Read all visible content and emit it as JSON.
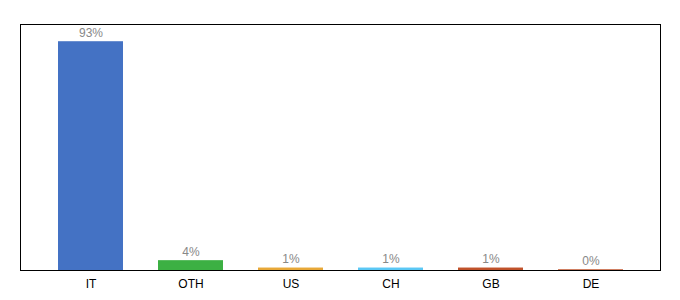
{
  "chart_data": {
    "type": "bar",
    "categories": [
      "IT",
      "OTH",
      "US",
      "CH",
      "GB",
      "DE"
    ],
    "values": [
      93,
      4,
      1,
      1,
      1,
      0.3
    ],
    "value_labels": [
      "93%",
      "4%",
      "1%",
      "1%",
      "1%",
      "0%"
    ],
    "colors": [
      "#4472c4",
      "#3cb043",
      "#e8a838",
      "#5bc8f5",
      "#c0522b",
      "#c0522b"
    ],
    "ylim": [
      0,
      100
    ],
    "yticks": [],
    "tick_labels": "x",
    "data_labels": true
  }
}
